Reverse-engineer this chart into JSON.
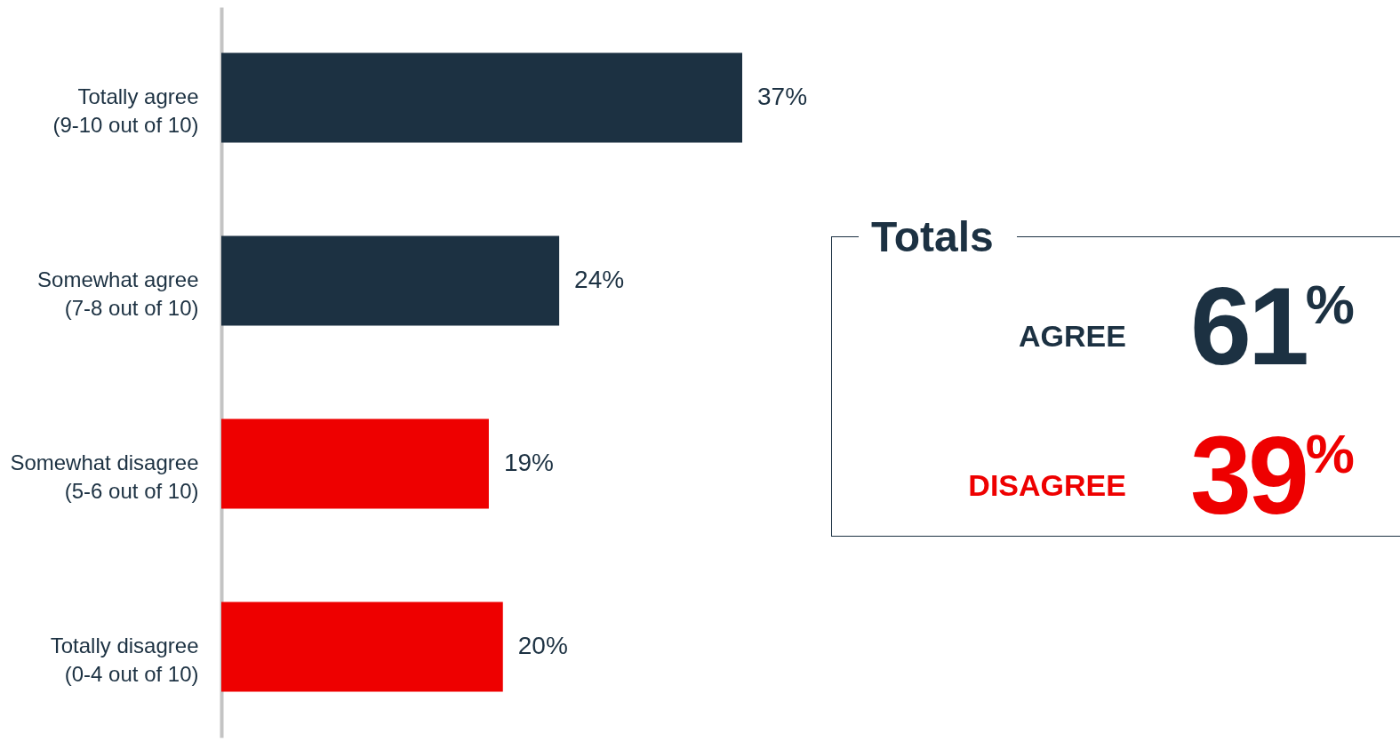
{
  "chart_data": {
    "type": "bar",
    "orientation": "horizontal",
    "categories": [
      "Totally agree\n(9-10 out of 10)",
      "Somewhat agree\n(7-8 out of 10)",
      "Somewhat disagree\n(5-6 out of 10)",
      "Totally disagree\n(0-4 out of 10)"
    ],
    "values": [
      37,
      24,
      19,
      20
    ],
    "colors": [
      "#1c3142",
      "#1c3142",
      "#ee0000",
      "#ee0000"
    ],
    "value_labels": [
      "37%",
      "24%",
      "19%",
      "20%"
    ],
    "legend": false,
    "grid": false,
    "annotations": [
      "Totals",
      "AGREE",
      "61%",
      "DISAGREE",
      "39%"
    ]
  }
}
